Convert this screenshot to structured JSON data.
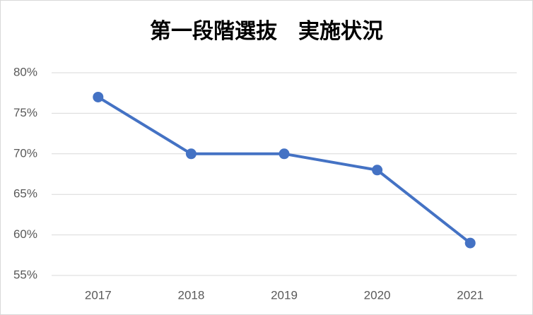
{
  "chart_data": {
    "type": "line",
    "title": "第一段階選抜　実施状況",
    "categories": [
      "2017",
      "2018",
      "2019",
      "2020",
      "2021"
    ],
    "values": [
      77,
      70,
      70,
      68,
      59
    ],
    "color": "#4472c4",
    "ylim": [
      55,
      80
    ],
    "yticks": [
      {
        "value": 55,
        "label": "55%"
      },
      {
        "value": 60,
        "label": "60%"
      },
      {
        "value": 65,
        "label": "65%"
      },
      {
        "value": 70,
        "label": "70%"
      },
      {
        "value": 75,
        "label": "75%"
      },
      {
        "value": 80,
        "label": "80%"
      }
    ],
    "grid": true
  }
}
